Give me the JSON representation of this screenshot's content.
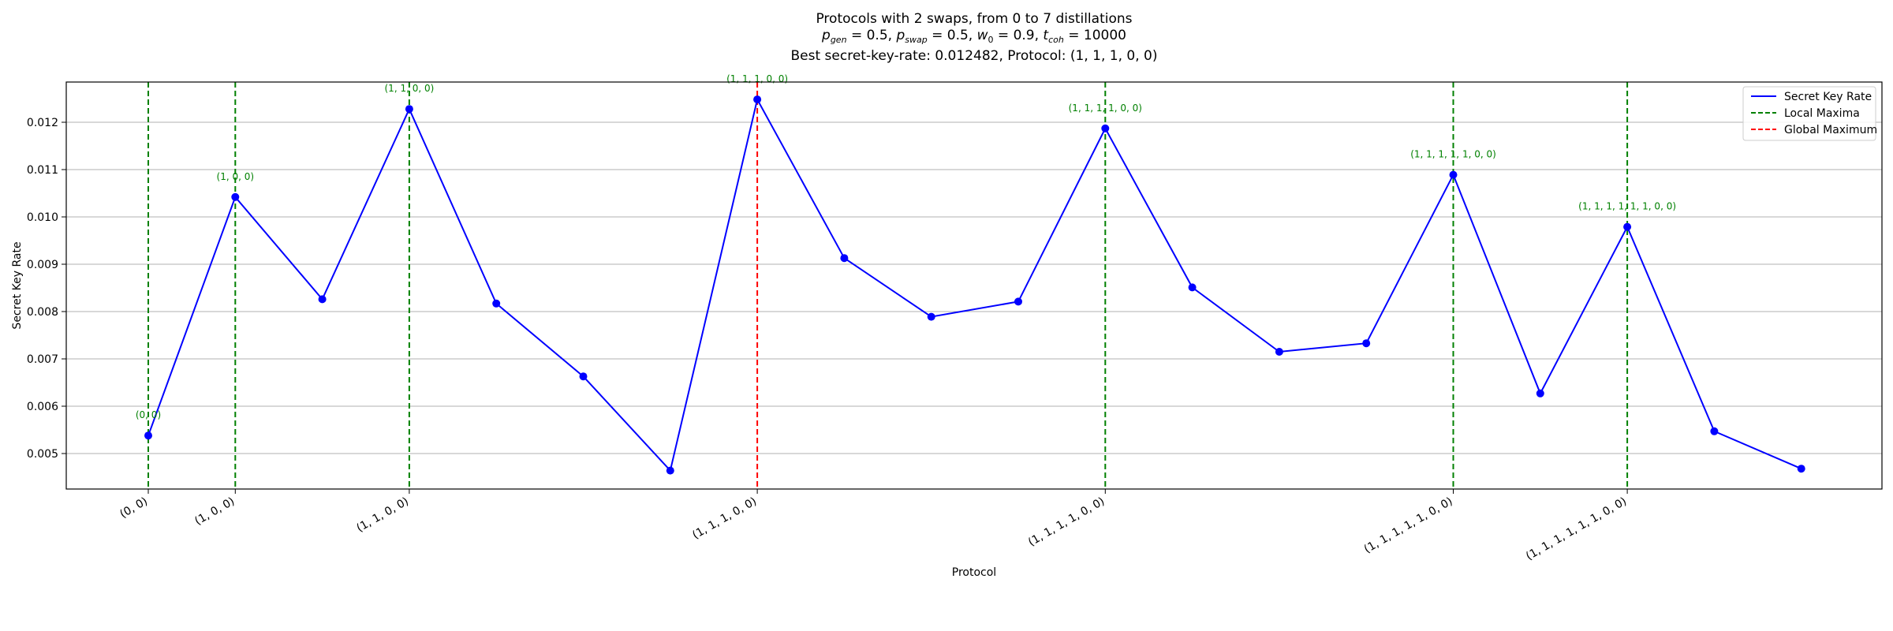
{
  "chart_data": {
    "type": "line",
    "title_lines": [
      "Protocols with 2 swaps, from 0 to 7 distillations",
      "p_gen = 0.5, p_swap = 0.5, w_0 = 0.9, t_coh = 10000",
      "Best secret-key-rate: 0.012482, Protocol: (1, 1, 1, 0, 0)"
    ],
    "xlabel": "Protocol",
    "ylabel": "Secret Key Rate",
    "ylim": [
      0.00425,
      0.01285
    ],
    "yticks": [
      "0.005",
      "0.006",
      "0.007",
      "0.008",
      "0.009",
      "0.010",
      "0.011",
      "0.012"
    ],
    "grid": "horizontal",
    "legend_position": "top-right",
    "series": [
      {
        "name": "Secret Key Rate",
        "color": "#0000ff",
        "values": [
          0.00538,
          0.01042,
          0.00826,
          0.01228,
          0.00817,
          0.00663,
          0.00464,
          0.012482,
          0.00913,
          0.00789,
          0.00821,
          0.01187,
          0.00851,
          0.00715,
          0.00733,
          0.01089,
          0.00627,
          0.00979,
          0.00547,
          0.00468
        ]
      }
    ],
    "x_tick_labels": [
      {
        "index": 0,
        "label": "(0, 0)"
      },
      {
        "index": 1,
        "label": "(1, 0, 0)"
      },
      {
        "index": 3,
        "label": "(1, 1, 0, 0)"
      },
      {
        "index": 7,
        "label": "(1, 1, 1, 0, 0)"
      },
      {
        "index": 11,
        "label": "(1, 1, 1, 1, 0, 0)"
      },
      {
        "index": 15,
        "label": "(1, 1, 1, 1, 1, 0, 0)"
      },
      {
        "index": 17,
        "label": "(1, 1, 1, 1, 1, 1, 0, 0)"
      }
    ],
    "local_maxima": [
      {
        "index": 0,
        "label": "(0, 0)"
      },
      {
        "index": 1,
        "label": "(1, 0, 0)"
      },
      {
        "index": 3,
        "label": "(1, 1, 0, 0)"
      },
      {
        "index": 11,
        "label": "(1, 1, 1, 1, 0, 0)"
      },
      {
        "index": 15,
        "label": "(1, 1, 1, 1, 1, 0, 0)"
      },
      {
        "index": 17,
        "label": "(1, 1, 1, 1, 1, 1, 0, 0)"
      }
    ],
    "global_maximum": {
      "index": 7,
      "label": "(1, 1, 1, 0, 0)"
    },
    "legend": [
      {
        "label": "Secret Key Rate",
        "color": "#0000ff",
        "style": "solid"
      },
      {
        "label": "Local Maxima",
        "color": "#008000",
        "style": "dashed"
      },
      {
        "label": "Global Maximum",
        "color": "#ff0000",
        "style": "dashed"
      }
    ],
    "colors": {
      "line": "#0000ff",
      "local": "#008000",
      "global": "#ff0000",
      "grid": "#b0b0b0"
    }
  }
}
